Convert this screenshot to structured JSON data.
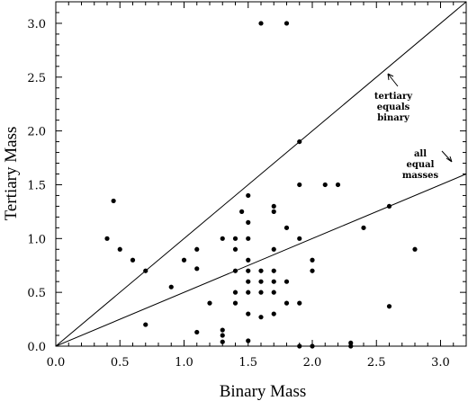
{
  "chart_data": {
    "type": "scatter",
    "xlabel": "Binary Mass",
    "ylabel": "Tertiary Mass",
    "xlim": [
      0.0,
      3.2
    ],
    "ylim": [
      0.0,
      3.2
    ],
    "x_ticks": [
      "0.0",
      "0.5",
      "1.0",
      "1.5",
      "2.0",
      "2.5",
      "3.0"
    ],
    "y_ticks": [
      "0.0",
      "0.5",
      "1.0",
      "1.5",
      "2.0",
      "2.5",
      "3.0"
    ],
    "x_tick_values": [
      0,
      0.5,
      1.0,
      1.5,
      2.0,
      2.5,
      3.0
    ],
    "y_tick_values": [
      0,
      0.5,
      1.0,
      1.5,
      2.0,
      2.5,
      3.0
    ],
    "grid": false,
    "lines": [
      {
        "label": [
          "tertiary",
          "equals",
          "binary"
        ],
        "slope": 1.0
      },
      {
        "label": [
          "all",
          "equal",
          "masses"
        ],
        "slope": 0.5
      }
    ],
    "points": [
      [
        0.4,
        1.0
      ],
      [
        0.45,
        1.35
      ],
      [
        0.5,
        0.9
      ],
      [
        0.6,
        0.8
      ],
      [
        0.7,
        0.7
      ],
      [
        0.7,
        0.2
      ],
      [
        0.9,
        0.55
      ],
      [
        1.0,
        0.8
      ],
      [
        1.1,
        0.9
      ],
      [
        1.1,
        0.72
      ],
      [
        1.1,
        0.13
      ],
      [
        1.2,
        0.4
      ],
      [
        1.3,
        1.0
      ],
      [
        1.3,
        0.15
      ],
      [
        1.3,
        0.1
      ],
      [
        1.3,
        0.04
      ],
      [
        1.4,
        1.0
      ],
      [
        1.4,
        0.9
      ],
      [
        1.4,
        0.7
      ],
      [
        1.4,
        0.5
      ],
      [
        1.4,
        0.4
      ],
      [
        1.45,
        1.25
      ],
      [
        1.5,
        1.4
      ],
      [
        1.5,
        1.15
      ],
      [
        1.5,
        1.0
      ],
      [
        1.5,
        0.8
      ],
      [
        1.5,
        0.7
      ],
      [
        1.5,
        0.6
      ],
      [
        1.5,
        0.5
      ],
      [
        1.5,
        0.3
      ],
      [
        1.5,
        0.05
      ],
      [
        1.6,
        3.0
      ],
      [
        1.6,
        0.7
      ],
      [
        1.6,
        0.6
      ],
      [
        1.6,
        0.5
      ],
      [
        1.6,
        0.27
      ],
      [
        1.7,
        1.3
      ],
      [
        1.7,
        1.25
      ],
      [
        1.7,
        0.9
      ],
      [
        1.7,
        0.7
      ],
      [
        1.7,
        0.6
      ],
      [
        1.7,
        0.5
      ],
      [
        1.7,
        0.3
      ],
      [
        1.8,
        3.0
      ],
      [
        1.8,
        1.1
      ],
      [
        1.8,
        0.6
      ],
      [
        1.8,
        0.4
      ],
      [
        1.9,
        1.9
      ],
      [
        1.9,
        1.5
      ],
      [
        1.9,
        1.0
      ],
      [
        1.9,
        0.4
      ],
      [
        1.9,
        0.0
      ],
      [
        2.0,
        0.8
      ],
      [
        2.0,
        0.7
      ],
      [
        2.0,
        0.0
      ],
      [
        2.1,
        1.5
      ],
      [
        2.2,
        1.5
      ],
      [
        2.3,
        0.03
      ],
      [
        2.3,
        0.0
      ],
      [
        2.4,
        1.1
      ],
      [
        2.6,
        1.3
      ],
      [
        2.6,
        0.37
      ],
      [
        2.8,
        0.9
      ]
    ]
  }
}
